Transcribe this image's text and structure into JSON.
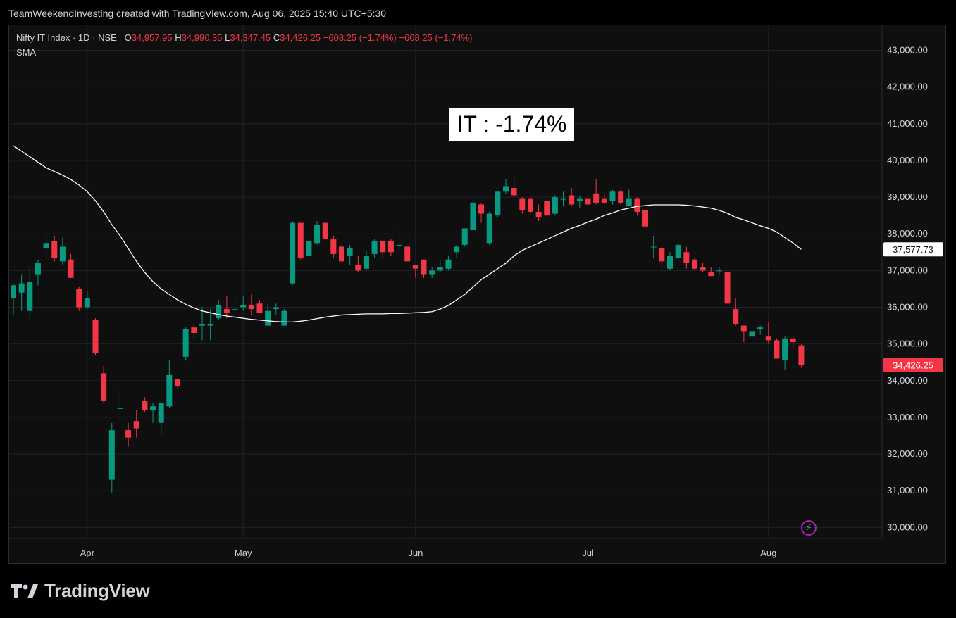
{
  "header": {
    "attribution": "TeamWeekendInvesting created with TradingView.com, Aug 06, 2025 15:40 UTC+5:30"
  },
  "legend": {
    "symbol": "Nifty IT Index · 1D · NSE",
    "open_label": "O",
    "open": "34,957.95",
    "high_label": "H",
    "high": "34,990.35",
    "low_label": "L",
    "low": "34,347.45",
    "close_label": "C",
    "close": "34,426.25",
    "change": "−608.25 (−1.74%)",
    "change2": "−608.25 (−1.74%)",
    "indicator": "SMA"
  },
  "annotation": {
    "text": "IT : -1.74%"
  },
  "footer": {
    "brand": "TradingView"
  },
  "colors": {
    "up": "#089981",
    "down": "#f23645",
    "sma": "#ffffff",
    "grid": "#1e222d",
    "axis_text": "#d1d4dc",
    "background": "#0f0f0f"
  },
  "icons": {
    "logo": "tradingview-logo-icon",
    "bolt": "lightning-icon"
  },
  "chart_data": {
    "type": "candlestick",
    "title": "Nifty IT Index · 1D · NSE",
    "ylim": [
      29700,
      43700
    ],
    "y_ticks": [
      30000,
      31000,
      32000,
      33000,
      34000,
      35000,
      36000,
      37000,
      38000,
      39000,
      40000,
      41000,
      42000,
      43000
    ],
    "y_tick_labels": [
      "30,000.00",
      "31,000.00",
      "32,000.00",
      "33,000.00",
      "34,000.00",
      "35,000.00",
      "36,000.00",
      "37,000.00",
      "38,000.00",
      "39,000.00",
      "40,000.00",
      "41,000.00",
      "42,000.00",
      "43,000.00"
    ],
    "x_labels": [
      {
        "label": "Apr",
        "index": 9
      },
      {
        "label": "May",
        "index": 28
      },
      {
        "label": "Jun",
        "index": 49
      },
      {
        "label": "Jul",
        "index": 70
      },
      {
        "label": "Aug",
        "index": 92
      }
    ],
    "candles": [
      {
        "o": 36250,
        "h": 36650,
        "l": 35800,
        "c": 36600
      },
      {
        "o": 36400,
        "h": 36900,
        "l": 35900,
        "c": 36650
      },
      {
        "o": 35900,
        "h": 37100,
        "l": 35700,
        "c": 36700
      },
      {
        "o": 36900,
        "h": 37300,
        "l": 36600,
        "c": 37200
      },
      {
        "o": 37600,
        "h": 38050,
        "l": 37300,
        "c": 37750
      },
      {
        "o": 37800,
        "h": 37950,
        "l": 37250,
        "c": 37350
      },
      {
        "o": 37250,
        "h": 37900,
        "l": 37150,
        "c": 37650
      },
      {
        "o": 37300,
        "h": 37450,
        "l": 36800,
        "c": 36800
      },
      {
        "o": 36500,
        "h": 36550,
        "l": 35900,
        "c": 36000
      },
      {
        "o": 36000,
        "h": 36450,
        "l": 35950,
        "c": 36250
      },
      {
        "o": 35650,
        "h": 35700,
        "l": 34700,
        "c": 34750
      },
      {
        "o": 34200,
        "h": 34400,
        "l": 33400,
        "c": 33450
      },
      {
        "o": 31300,
        "h": 32850,
        "l": 30950,
        "c": 32650
      },
      {
        "o": 33250,
        "h": 33750,
        "l": 32850,
        "c": 33250
      },
      {
        "o": 32650,
        "h": 32850,
        "l": 32200,
        "c": 32450
      },
      {
        "o": 32900,
        "h": 33200,
        "l": 32450,
        "c": 32700
      },
      {
        "o": 33450,
        "h": 33550,
        "l": 33150,
        "c": 33200
      },
      {
        "o": 33200,
        "h": 33400,
        "l": 32850,
        "c": 33300
      },
      {
        "o": 32850,
        "h": 33450,
        "l": 32500,
        "c": 33400
      },
      {
        "o": 33300,
        "h": 34550,
        "l": 33250,
        "c": 34150
      },
      {
        "o": 34050,
        "h": 34050,
        "l": 33800,
        "c": 33850
      },
      {
        "o": 34650,
        "h": 35450,
        "l": 34550,
        "c": 35400
      },
      {
        "o": 35450,
        "h": 35550,
        "l": 35150,
        "c": 35300
      },
      {
        "o": 35500,
        "h": 36000,
        "l": 35100,
        "c": 35550
      },
      {
        "o": 35500,
        "h": 35950,
        "l": 35100,
        "c": 35550
      },
      {
        "o": 35700,
        "h": 36200,
        "l": 35650,
        "c": 36050
      },
      {
        "o": 35950,
        "h": 36300,
        "l": 35700,
        "c": 35850
      },
      {
        "o": 35950,
        "h": 36300,
        "l": 35800,
        "c": 35950
      },
      {
        "o": 36000,
        "h": 36300,
        "l": 35900,
        "c": 36050
      },
      {
        "o": 36050,
        "h": 36350,
        "l": 35800,
        "c": 35950
      },
      {
        "o": 36100,
        "h": 36200,
        "l": 35850,
        "c": 35850
      },
      {
        "o": 35500,
        "h": 36100,
        "l": 35500,
        "c": 35900
      },
      {
        "o": 35950,
        "h": 36100,
        "l": 35800,
        "c": 36000
      },
      {
        "o": 35500,
        "h": 35950,
        "l": 35500,
        "c": 35900
      },
      {
        "o": 36650,
        "h": 38350,
        "l": 36600,
        "c": 38300
      },
      {
        "o": 38300,
        "h": 38300,
        "l": 37300,
        "c": 37350
      },
      {
        "o": 37400,
        "h": 37900,
        "l": 37350,
        "c": 37800
      },
      {
        "o": 37750,
        "h": 38350,
        "l": 37700,
        "c": 38250
      },
      {
        "o": 38300,
        "h": 38350,
        "l": 37800,
        "c": 37850
      },
      {
        "o": 37850,
        "h": 37950,
        "l": 37350,
        "c": 37450
      },
      {
        "o": 37650,
        "h": 37700,
        "l": 37250,
        "c": 37250
      },
      {
        "o": 37400,
        "h": 37700,
        "l": 37150,
        "c": 37600
      },
      {
        "o": 37150,
        "h": 37400,
        "l": 36950,
        "c": 37000
      },
      {
        "o": 37050,
        "h": 37550,
        "l": 37000,
        "c": 37400
      },
      {
        "o": 37450,
        "h": 37850,
        "l": 37350,
        "c": 37800
      },
      {
        "o": 37800,
        "h": 37850,
        "l": 37350,
        "c": 37500
      },
      {
        "o": 37800,
        "h": 37850,
        "l": 37400,
        "c": 37500
      },
      {
        "o": 37700,
        "h": 38100,
        "l": 37550,
        "c": 37700
      },
      {
        "o": 37650,
        "h": 37650,
        "l": 37250,
        "c": 37250
      },
      {
        "o": 37150,
        "h": 37150,
        "l": 36800,
        "c": 37050
      },
      {
        "o": 37300,
        "h": 37300,
        "l": 36800,
        "c": 36900
      },
      {
        "o": 36900,
        "h": 37100,
        "l": 36800,
        "c": 37000
      },
      {
        "o": 37000,
        "h": 37300,
        "l": 36950,
        "c": 37100
      },
      {
        "o": 37050,
        "h": 37400,
        "l": 37000,
        "c": 37300
      },
      {
        "o": 37500,
        "h": 37700,
        "l": 37350,
        "c": 37650
      },
      {
        "o": 37700,
        "h": 38150,
        "l": 37650,
        "c": 38150
      },
      {
        "o": 38100,
        "h": 38900,
        "l": 38050,
        "c": 38850
      },
      {
        "o": 38800,
        "h": 38850,
        "l": 38300,
        "c": 38550
      },
      {
        "o": 37750,
        "h": 38600,
        "l": 37700,
        "c": 38550
      },
      {
        "o": 38500,
        "h": 39150,
        "l": 38450,
        "c": 39150
      },
      {
        "o": 39150,
        "h": 39500,
        "l": 39100,
        "c": 39300
      },
      {
        "o": 39250,
        "h": 39550,
        "l": 39000,
        "c": 39050
      },
      {
        "o": 38950,
        "h": 39000,
        "l": 38550,
        "c": 38650
      },
      {
        "o": 38950,
        "h": 39000,
        "l": 38550,
        "c": 38600
      },
      {
        "o": 38600,
        "h": 38800,
        "l": 38350,
        "c": 38450
      },
      {
        "o": 38900,
        "h": 38950,
        "l": 38450,
        "c": 38500
      },
      {
        "o": 38550,
        "h": 39050,
        "l": 38500,
        "c": 39000
      },
      {
        "o": 38950,
        "h": 39150,
        "l": 38750,
        "c": 38950
      },
      {
        "o": 39050,
        "h": 39250,
        "l": 38750,
        "c": 38800
      },
      {
        "o": 38900,
        "h": 39050,
        "l": 38700,
        "c": 38950
      },
      {
        "o": 38950,
        "h": 39150,
        "l": 38750,
        "c": 38800
      },
      {
        "o": 39100,
        "h": 39500,
        "l": 38800,
        "c": 38850
      },
      {
        "o": 38950,
        "h": 39100,
        "l": 38800,
        "c": 38850
      },
      {
        "o": 38900,
        "h": 39200,
        "l": 38800,
        "c": 39150
      },
      {
        "o": 39150,
        "h": 39200,
        "l": 38800,
        "c": 38850
      },
      {
        "o": 38750,
        "h": 39200,
        "l": 38750,
        "c": 38950
      },
      {
        "o": 38950,
        "h": 39000,
        "l": 38500,
        "c": 38600
      },
      {
        "o": 38650,
        "h": 38650,
        "l": 38200,
        "c": 38200
      },
      {
        "o": 37650,
        "h": 37950,
        "l": 37350,
        "c": 37650
      },
      {
        "o": 37600,
        "h": 37650,
        "l": 37050,
        "c": 37250
      },
      {
        "o": 37050,
        "h": 37500,
        "l": 37000,
        "c": 37400
      },
      {
        "o": 37350,
        "h": 37750,
        "l": 37300,
        "c": 37700
      },
      {
        "o": 37500,
        "h": 37650,
        "l": 37050,
        "c": 37200
      },
      {
        "o": 37300,
        "h": 37350,
        "l": 37000,
        "c": 37050
      },
      {
        "o": 37100,
        "h": 37200,
        "l": 36950,
        "c": 37000
      },
      {
        "o": 36950,
        "h": 37100,
        "l": 36850,
        "c": 36850
      },
      {
        "o": 37000,
        "h": 37100,
        "l": 36900,
        "c": 37000
      },
      {
        "o": 36950,
        "h": 36950,
        "l": 36100,
        "c": 36100
      },
      {
        "o": 35950,
        "h": 36250,
        "l": 35500,
        "c": 35550
      },
      {
        "o": 35500,
        "h": 35500,
        "l": 35050,
        "c": 35350
      },
      {
        "o": 35200,
        "h": 35450,
        "l": 35100,
        "c": 35350
      },
      {
        "o": 35400,
        "h": 35500,
        "l": 35250,
        "c": 35450
      },
      {
        "o": 35200,
        "h": 35600,
        "l": 35000,
        "c": 35100
      },
      {
        "o": 35100,
        "h": 35150,
        "l": 34600,
        "c": 34600
      },
      {
        "o": 34550,
        "h": 35200,
        "l": 34300,
        "c": 35150
      },
      {
        "o": 35150,
        "h": 35200,
        "l": 34900,
        "c": 35050
      },
      {
        "o": 34960,
        "h": 34990,
        "l": 34350,
        "c": 34430
      }
    ],
    "sma": [
      40400,
      40250,
      40100,
      39950,
      39800,
      39700,
      39600,
      39480,
      39330,
      39150,
      38900,
      38600,
      38250,
      37950,
      37600,
      37250,
      36950,
      36700,
      36500,
      36350,
      36200,
      36080,
      35980,
      35900,
      35850,
      35800,
      35760,
      35730,
      35700,
      35670,
      35650,
      35630,
      35610,
      35600,
      35600,
      35620,
      35650,
      35690,
      35730,
      35760,
      35790,
      35800,
      35810,
      35820,
      35820,
      35820,
      35830,
      35830,
      35840,
      35850,
      35860,
      35880,
      35950,
      36050,
      36200,
      36350,
      36550,
      36750,
      36900,
      37050,
      37200,
      37400,
      37550,
      37650,
      37750,
      37850,
      37950,
      38050,
      38150,
      38230,
      38320,
      38400,
      38500,
      38570,
      38650,
      38700,
      38750,
      38770,
      38790,
      38790,
      38790,
      38790,
      38780,
      38760,
      38730,
      38700,
      38640,
      38560,
      38450,
      38380,
      38300,
      38220,
      38150,
      38050,
      37900,
      37750,
      37578
    ],
    "last_value_tags": [
      {
        "label": "37,577.73",
        "value": 37577.73,
        "kind": "sma"
      },
      {
        "label": "34,426.25",
        "value": 34426.25,
        "kind": "price"
      }
    ]
  }
}
